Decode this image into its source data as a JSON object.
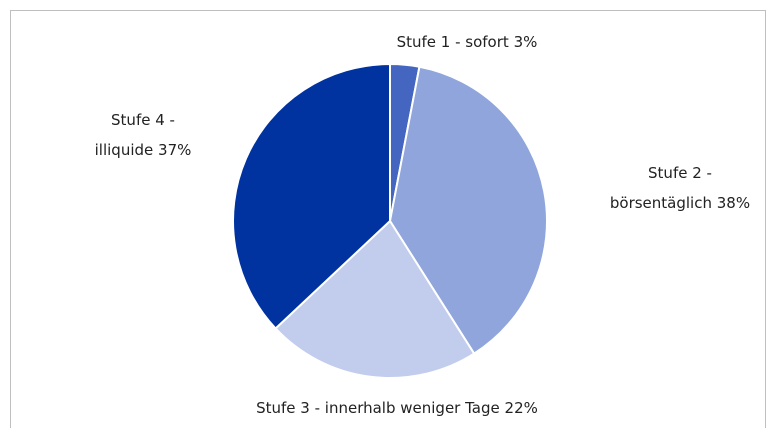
{
  "chart_data": {
    "type": "pie",
    "categories": [
      "Stufe 1 - sofort",
      "Stufe 2 - börsentäglich",
      "Stufe 3 - innerhalb weniger Tage",
      "Stufe 4 - illiquide"
    ],
    "values": [
      3,
      38,
      22,
      37
    ],
    "value_labels": [
      "3%",
      "38%",
      "22%",
      "37%"
    ],
    "colors": [
      "#4466c0",
      "#8fa5dc",
      "#c2cced",
      "#0033a0"
    ]
  }
}
